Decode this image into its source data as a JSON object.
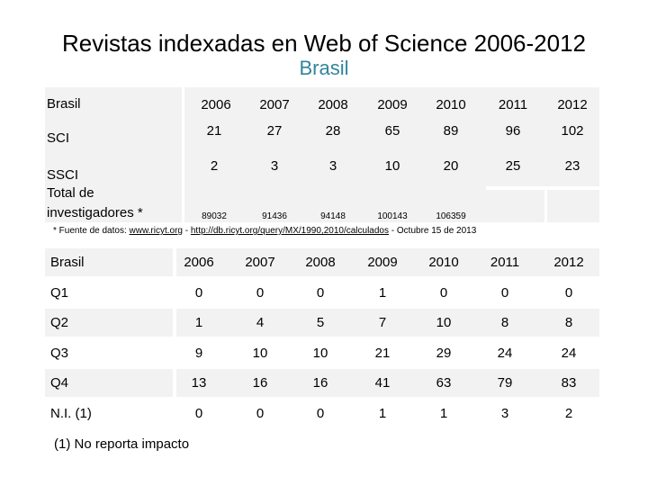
{
  "title": "Revistas indexadas en Web of Science 2006-2012",
  "subtitle": "Brasil",
  "table1": {
    "header_label": "Brasil",
    "years": [
      "2006",
      "2007",
      "2008",
      "2009",
      "2010",
      "2011",
      "2012"
    ],
    "rows": [
      {
        "label": "SCI",
        "values": [
          "21",
          "27",
          "28",
          "65",
          "89",
          "96",
          "102"
        ]
      },
      {
        "label": "SSCI",
        "values": [
          "2",
          "3",
          "3",
          "10",
          "20",
          "25",
          "23"
        ]
      }
    ],
    "investigadores_label_1": "Total de",
    "investigadores_label_2": "investigadores *",
    "investigadores_values": [
      "89032",
      "91436",
      "94148",
      "100143",
      "106359",
      "",
      ""
    ]
  },
  "footnote1": {
    "prefix": "* Fuente de datos: ",
    "link1": "www.ricyt.org",
    "sep": " - ",
    "link2": "http://db.ricyt.org/query/MX/1990,2010/calculados",
    "suffix": "  - Octubre 15 de 2013"
  },
  "table2": {
    "header_label": "Brasil",
    "years": [
      "2006",
      "2007",
      "2008",
      "2009",
      "2010",
      "2011",
      "2012"
    ],
    "rows": [
      {
        "label": "Q1",
        "values": [
          "0",
          "0",
          "0",
          "1",
          "0",
          "0",
          "0"
        ]
      },
      {
        "label": "Q2",
        "values": [
          "1",
          "4",
          "5",
          "7",
          "10",
          "8",
          "8"
        ]
      },
      {
        "label": "Q3",
        "values": [
          "9",
          "10",
          "10",
          "21",
          "29",
          "24",
          "24"
        ]
      },
      {
        "label": "Q4",
        "values": [
          "13",
          "16",
          "16",
          "41",
          "63",
          "79",
          "83"
        ]
      },
      {
        "label": "N.I. (1)",
        "values": [
          "0",
          "0",
          "0",
          "1",
          "1",
          "3",
          "2"
        ]
      }
    ]
  },
  "footnote2": "(1) No reporta impacto"
}
